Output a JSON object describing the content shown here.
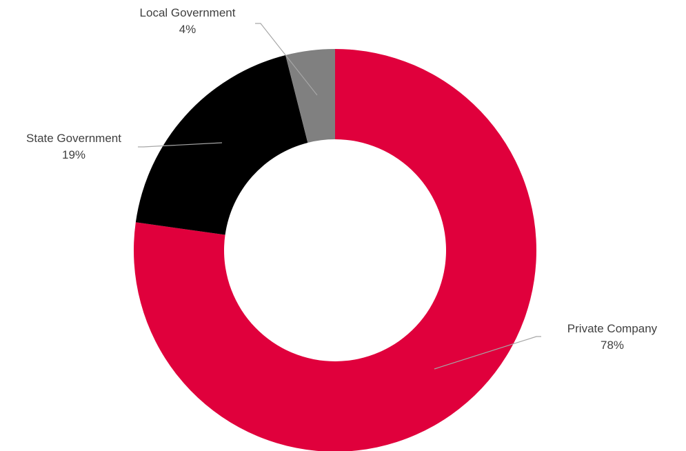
{
  "chart_data": {
    "type": "pie",
    "style": "donut",
    "title": "",
    "slices": [
      {
        "label": "Private Company",
        "value": 78,
        "display": "78%",
        "color": "#e0003c"
      },
      {
        "label": "State Government",
        "value": 19,
        "display": "19%",
        "color": "#000000"
      },
      {
        "label": "Local Government",
        "value": 4,
        "display": "4%",
        "color": "#808080"
      }
    ],
    "start_angle_deg": 0,
    "direction": "clockwise",
    "legend": "none",
    "labels": "outside with leader lines"
  }
}
